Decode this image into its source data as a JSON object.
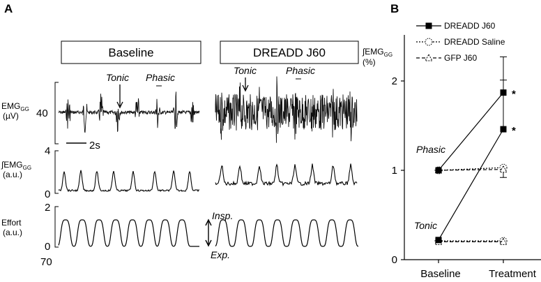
{
  "panel_a": {
    "label": "A",
    "baseline_title": "Baseline",
    "dreadd_title": "DREADD J60",
    "emg_label": "EMG",
    "emg_sub": "GG",
    "emg_unit": "(µV)",
    "emg_scale": "40",
    "time_scale": "2s",
    "int_label": "∫EMG",
    "int_sub": "GG",
    "int_unit": "(a.u.)",
    "int_max": "4",
    "int_min": "0",
    "effort_label": "Effort",
    "effort_unit": "(a.u.)",
    "effort_max": "2",
    "effort_min": "0",
    "effort_low": "70",
    "tonic": "Tonic",
    "phasic": "Phasic",
    "insp": "Insp.",
    "exp": "Exp."
  },
  "panel_b": {
    "label": "B",
    "y_label": "∫EMG",
    "y_sub": "GG",
    "y_unit": "(%)",
    "phasic_label": "Phasic",
    "tonic_label": "Tonic",
    "significance": "*"
  },
  "chart_data": {
    "type": "line",
    "categories": [
      "Baseline",
      "Treatment"
    ],
    "ylim": [
      0,
      2.4
    ],
    "yticks": [
      "0",
      "1",
      "2"
    ],
    "legend_position": "top-right",
    "series": [
      {
        "name": "DREADD J60",
        "group": "Phasic",
        "values": [
          1.0,
          1.87
        ],
        "error": [
          0,
          0.4
        ],
        "marker": "square",
        "style": "solid"
      },
      {
        "name": "DREADD Saline",
        "group": "Phasic",
        "values": [
          1.0,
          1.03
        ],
        "error": [
          0,
          0.11
        ],
        "marker": "circle",
        "style": "dotted"
      },
      {
        "name": "GFP J60",
        "group": "Phasic",
        "values": [
          1.0,
          1.01
        ],
        "error": [
          0,
          0.02
        ],
        "marker": "triangle",
        "style": "dashed"
      },
      {
        "name": "DREADD J60",
        "group": "Tonic",
        "values": [
          0.22,
          1.46
        ],
        "error": [
          0,
          0.55
        ],
        "marker": "square",
        "style": "solid"
      },
      {
        "name": "DREADD Saline",
        "group": "Tonic",
        "values": [
          0.21,
          0.21
        ],
        "error": [
          0,
          0.02
        ],
        "marker": "circle",
        "style": "dotted"
      },
      {
        "name": "GFP J60",
        "group": "Tonic",
        "values": [
          0.2,
          0.2
        ],
        "error": [
          0,
          0.02
        ],
        "marker": "triangle",
        "style": "dashed"
      }
    ],
    "significant": [
      "DREADD J60"
    ]
  }
}
